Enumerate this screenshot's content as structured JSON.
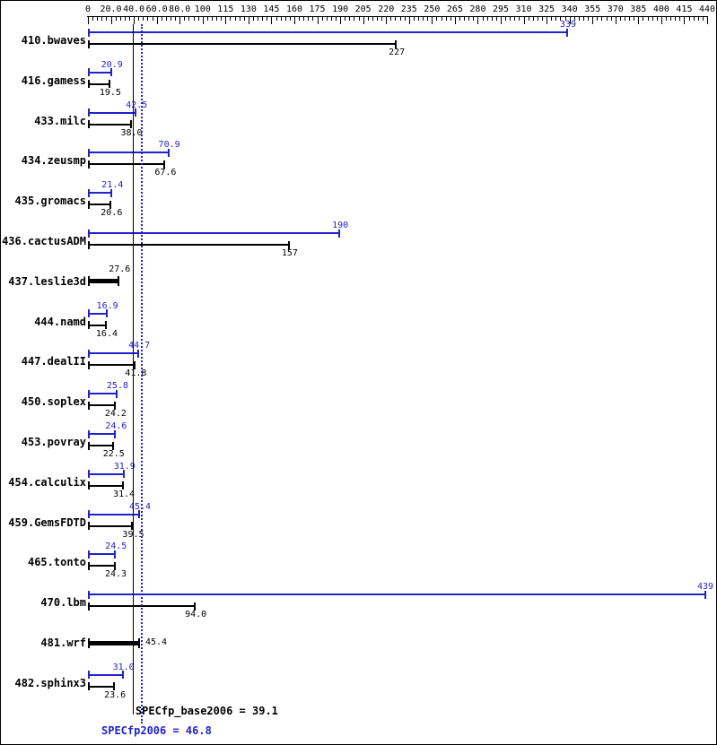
{
  "colors": {
    "peak": "#2222cc",
    "base": "#000000",
    "background": "#ffffff",
    "border": "#000000"
  },
  "chart_data": {
    "type": "bar",
    "orientation": "horizontal",
    "title": "",
    "xlabel": "",
    "legend": "none",
    "axis": {
      "tick_values": [
        0,
        20,
        40,
        60,
        80,
        100,
        115,
        130,
        145,
        160,
        175,
        190,
        205,
        220,
        235,
        250,
        265,
        280,
        295,
        310,
        325,
        340,
        355,
        370,
        385,
        400,
        415,
        440
      ],
      "tick_labels": [
        "0",
        "20.0",
        "40.0",
        "60.0",
        "80.0",
        "100",
        "115",
        "130",
        "145",
        "160",
        "175",
        "190",
        "205",
        "220",
        "235",
        "250",
        "265",
        "280",
        "295",
        "310",
        "325",
        "340",
        "355",
        "370",
        "385",
        "400",
        "415",
        "440"
      ]
    },
    "benchmarks": [
      {
        "name": "410.bwaves",
        "peak": {
          "value": 339,
          "label": "339"
        },
        "base": {
          "value": 227,
          "label": "227"
        }
      },
      {
        "name": "416.gamess",
        "peak": {
          "value": 20.9,
          "label": "20.9"
        },
        "base": {
          "value": 19.5,
          "label": "19.5"
        }
      },
      {
        "name": "433.milc",
        "peak": {
          "value": 42.5,
          "label": "42.5"
        },
        "base": {
          "value": 38.0,
          "label": "38.0"
        }
      },
      {
        "name": "434.zeusmp",
        "peak": {
          "value": 70.9,
          "label": "70.9"
        },
        "base": {
          "value": 67.6,
          "label": "67.6"
        }
      },
      {
        "name": "435.gromacs",
        "peak": {
          "value": 21.4,
          "label": "21.4"
        },
        "base": {
          "value": 20.6,
          "label": "20.6"
        }
      },
      {
        "name": "436.cactusADM",
        "peak": {
          "value": 190,
          "label": "190"
        },
        "base": {
          "value": 157,
          "label": "157"
        }
      },
      {
        "name": "437.leslie3d",
        "single": {
          "value": 27.6,
          "label": "27.6",
          "label_pos": "above"
        },
        "bold": true
      },
      {
        "name": "444.namd",
        "peak": {
          "value": 16.9,
          "label": "16.9"
        },
        "base": {
          "value": 16.4,
          "label": "16.4"
        }
      },
      {
        "name": "447.dealII",
        "peak": {
          "value": 44.7,
          "label": "44.7"
        },
        "base": {
          "value": 41.8,
          "label": "41.8"
        }
      },
      {
        "name": "450.soplex",
        "peak": {
          "value": 25.8,
          "label": "25.8"
        },
        "base": {
          "value": 24.2,
          "label": "24.2"
        }
      },
      {
        "name": "453.povray",
        "peak": {
          "value": 24.6,
          "label": "24.6"
        },
        "base": {
          "value": 22.5,
          "label": "22.5"
        }
      },
      {
        "name": "454.calculix",
        "peak": {
          "value": 31.9,
          "label": "31.9"
        },
        "base": {
          "value": 31.4,
          "label": "31.4"
        }
      },
      {
        "name": "459.GemsFDTD",
        "peak": {
          "value": 45.4,
          "label": "45.4"
        },
        "base": {
          "value": 39.5,
          "label": "39.5"
        }
      },
      {
        "name": "465.tonto",
        "peak": {
          "value": 24.5,
          "label": "24.5"
        },
        "base": {
          "value": 24.3,
          "label": "24.3"
        }
      },
      {
        "name": "470.lbm",
        "peak": {
          "value": 439,
          "label": "439"
        },
        "base": {
          "value": 94.0,
          "label": "94.0"
        }
      },
      {
        "name": "481.wrf",
        "single": {
          "value": 45.4,
          "label": "45.4",
          "label_pos": "right"
        },
        "bold": true
      },
      {
        "name": "482.sphinx3",
        "peak": {
          "value": 31.0,
          "label": "31.0"
        },
        "base": {
          "value": 23.6,
          "label": "23.6"
        }
      }
    ],
    "means": {
      "base": {
        "value": 39.1,
        "text": "SPECfp_base2006 = 39.1"
      },
      "peak": {
        "value": 46.8,
        "text": "SPECfp2006 = 46.8"
      }
    }
  }
}
